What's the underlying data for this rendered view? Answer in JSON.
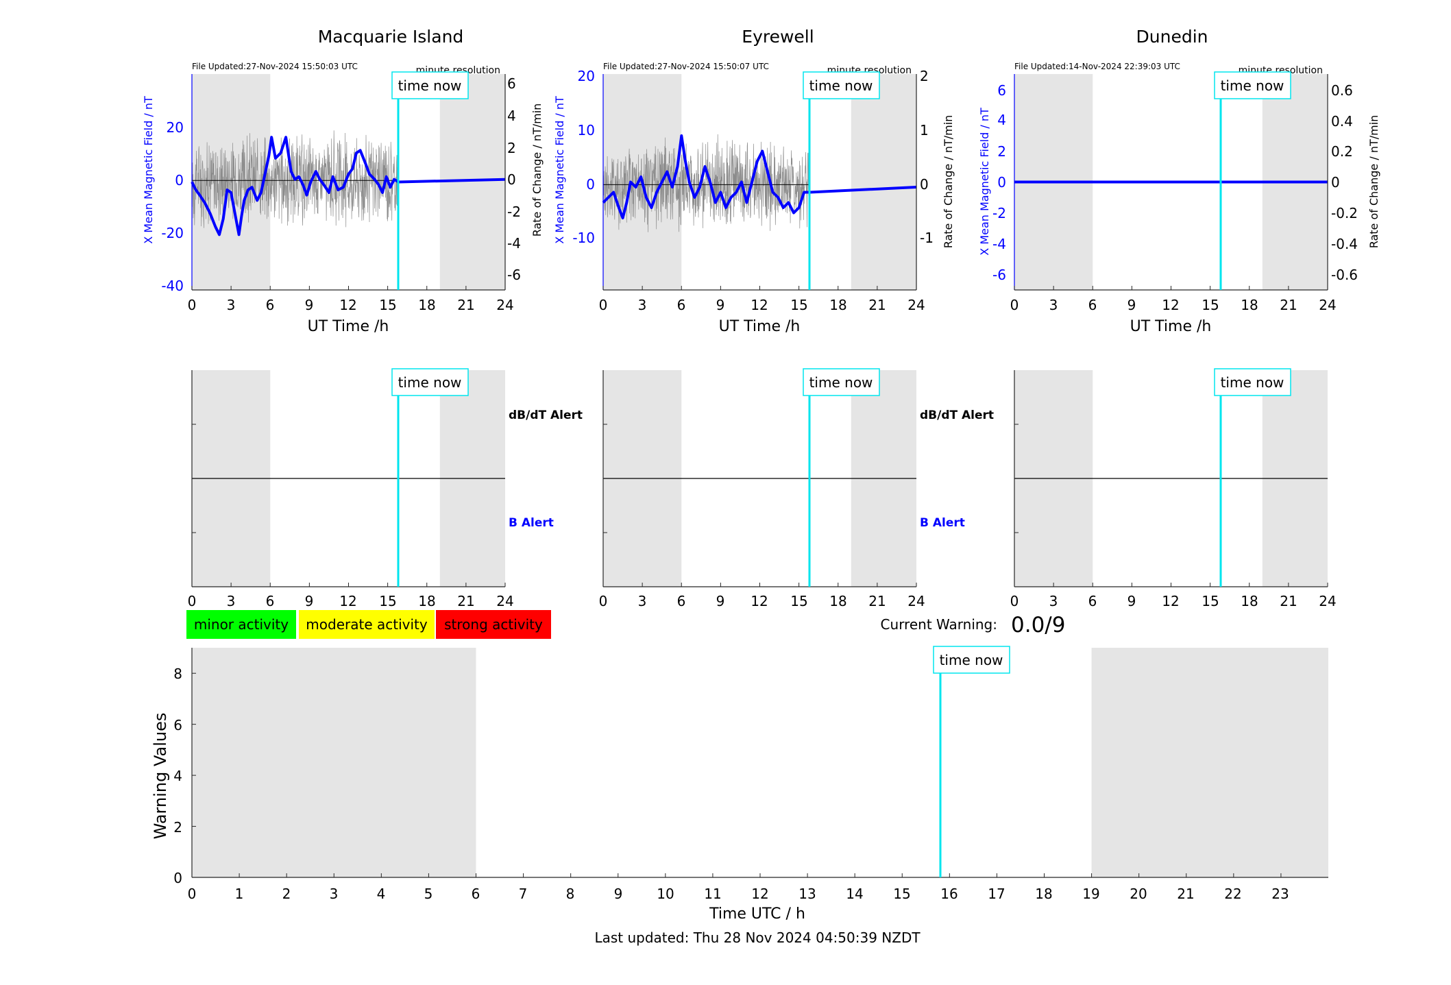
{
  "station_panels": [
    {
      "title": "Macquarie Island",
      "file_updated": "File Updated:27-Nov-2024 15:50:03 UTC",
      "resolution_label": "minute resolution",
      "left_axis_label": "X Mean Magnetic Field / nT",
      "right_axis_label": "Rate of Change / nT/min",
      "xlabel": "UT Time /h",
      "left_yticks": [
        "20",
        "0",
        "-20",
        "-40"
      ],
      "right_yticks": [
        "6",
        "4",
        "2",
        "0",
        "-2",
        "-4",
        "-6"
      ],
      "xticks": [
        "0",
        "3",
        "6",
        "9",
        "12",
        "15",
        "18",
        "21",
        "24"
      ],
      "time_now_label": "time now"
    },
    {
      "title": "Eyrewell",
      "file_updated": "File Updated:27-Nov-2024 15:50:07 UTC",
      "resolution_label": "minute resolution",
      "left_axis_label": "X Mean Magnetic Field / nT",
      "right_axis_label": "Rate of Change / nT/min",
      "xlabel": "UT Time /h",
      "left_yticks": [
        "20",
        "10",
        "0",
        "-10"
      ],
      "right_yticks": [
        "2",
        "1",
        "0",
        "-1"
      ],
      "xticks": [
        "0",
        "3",
        "6",
        "9",
        "12",
        "15",
        "18",
        "21",
        "24"
      ],
      "time_now_label": "time now"
    },
    {
      "title": "Dunedin",
      "file_updated": "File Updated:14-Nov-2024 22:39:03 UTC",
      "resolution_label": "minute resolution",
      "left_axis_label": "X Mean Magnetic Field / nT",
      "right_axis_label": "Rate of Change / nT/min",
      "xlabel": "UT Time /h",
      "left_yticks": [
        "6",
        "4",
        "2",
        "0",
        "-2",
        "-4",
        "-6"
      ],
      "right_yticks": [
        "0.6",
        "0.4",
        "0.2",
        "0",
        "-0.2",
        "-0.4",
        "-0.6"
      ],
      "xticks": [
        "0",
        "3",
        "6",
        "9",
        "12",
        "15",
        "18",
        "21",
        "24"
      ],
      "time_now_label": "time now"
    }
  ],
  "alert_panels": [
    {
      "dbdt_label": "dB/dT Alert",
      "b_label": "B Alert",
      "xticks": [
        "0",
        "3",
        "6",
        "9",
        "12",
        "15",
        "18",
        "21",
        "24"
      ],
      "time_now_label": "time now"
    },
    {
      "dbdt_label": "dB/dT Alert",
      "b_label": "B Alert",
      "xticks": [
        "0",
        "3",
        "6",
        "9",
        "12",
        "15",
        "18",
        "21",
        "24"
      ],
      "time_now_label": "time now"
    },
    {
      "dbdt_label": "",
      "b_label": "",
      "xticks": [
        "0",
        "3",
        "6",
        "9",
        "12",
        "15",
        "18",
        "21",
        "24"
      ],
      "time_now_label": "time now"
    }
  ],
  "legend": [
    {
      "label": "minor activity",
      "color": "#00ff00"
    },
    {
      "label": "moderate activity",
      "color": "#ffff00"
    },
    {
      "label": "strong activity",
      "color": "#ff0000"
    }
  ],
  "current_warning": {
    "label": "Current Warning:",
    "value": "0.0/9"
  },
  "warning_panel": {
    "ylabel": "Warning Values",
    "xlabel": "Time UTC / h",
    "yticks": [
      "0",
      "2",
      "4",
      "6",
      "8"
    ],
    "xticks": [
      "0",
      "1",
      "2",
      "3",
      "4",
      "5",
      "6",
      "7",
      "8",
      "9",
      "10",
      "11",
      "12",
      "13",
      "14",
      "15",
      "16",
      "17",
      "18",
      "19",
      "20",
      "21",
      "22",
      "23"
    ],
    "time_now_label": "time now"
  },
  "footer": {
    "last_updated": "Last updated: Thu 28 Nov 2024 04:50:39 NZDT"
  },
  "colors": {
    "blue": "#0000ff",
    "cyan": "#00e5ee",
    "night_shade": "#e5e5e5",
    "axis": "#262626"
  },
  "chart_data": [
    {
      "type": "line",
      "title": "Macquarie Island",
      "xlabel": "UT Time /h",
      "ylabel": "X Mean Magnetic Field / nT",
      "y2label": "Rate of Change / nT/min",
      "xlim": [
        0,
        24
      ],
      "ylim": [
        -42,
        40
      ],
      "y2lim": [
        -7,
        6.8
      ],
      "night_shading_hours": [
        [
          0,
          6
        ],
        [
          19,
          24
        ]
      ],
      "time_now_hour": 15.83,
      "series": [
        {
          "name": "X Mean Magnetic Field",
          "axis": "left",
          "x": [
            0,
            0.3,
            0.6,
            1.0,
            1.4,
            1.8,
            2.1,
            2.4,
            2.7,
            3.0,
            3.3,
            3.6,
            3.8,
            4.0,
            4.3,
            4.6,
            5.0,
            5.3,
            5.6,
            5.9,
            6.1,
            6.4,
            6.8,
            7.2,
            7.6,
            7.9,
            8.2,
            8.5,
            8.8,
            9.1,
            9.5,
            9.8,
            10.1,
            10.5,
            10.8,
            11.2,
            11.6,
            12.0,
            12.3,
            12.6,
            12.9,
            13.3,
            13.6,
            14.0,
            14.3,
            14.6,
            14.9,
            15.2,
            15.5,
            15.83,
            24
          ],
          "y": [
            -1,
            -4,
            -6,
            -9,
            -13,
            -18,
            -21,
            -15,
            -4,
            -5,
            -13,
            -21,
            -14,
            -8,
            -4,
            -3,
            -8,
            -5,
            2,
            9,
            16,
            8,
            10,
            16,
            3,
            0,
            1,
            -2,
            -6,
            -1,
            3,
            0,
            -2,
            -5,
            1,
            -4,
            -3,
            2,
            4,
            10,
            11,
            6,
            2,
            0,
            -2,
            -5,
            1,
            -3,
            0,
            -1,
            0
          ]
        },
        {
          "name": "Rate of Change",
          "axis": "right",
          "style": "thin grey noise",
          "x": [
            0,
            15.83
          ],
          "y": [
            0,
            0
          ]
        }
      ]
    },
    {
      "type": "line",
      "title": "Eyrewell",
      "xlabel": "UT Time /h",
      "ylabel": "X Mean Magnetic Field / nT",
      "y2label": "Rate of Change / nT/min",
      "xlim": [
        0,
        24
      ],
      "ylim": [
        -20,
        22
      ],
      "y2lim": [
        -2,
        2.1
      ],
      "night_shading_hours": [
        [
          0,
          6
        ],
        [
          19,
          24
        ]
      ],
      "time_now_hour": 15.83,
      "series": [
        {
          "name": "X Mean Magnetic Field",
          "axis": "left",
          "x": [
            0,
            0.4,
            0.8,
            1.2,
            1.5,
            1.8,
            2.1,
            2.5,
            2.9,
            3.3,
            3.7,
            4.1,
            4.5,
            4.9,
            5.3,
            5.7,
            6.0,
            6.3,
            6.6,
            7.0,
            7.4,
            7.8,
            8.2,
            8.6,
            9.0,
            9.4,
            9.8,
            10.2,
            10.6,
            11.0,
            11.4,
            11.8,
            12.2,
            12.6,
            13.0,
            13.4,
            13.8,
            14.2,
            14.6,
            15.0,
            15.4,
            15.83,
            24
          ],
          "y": [
            -3,
            -2,
            -1,
            -4,
            -6,
            -3,
            1,
            0,
            2,
            -2,
            -4,
            -1,
            1,
            3,
            0,
            4,
            10,
            5,
            1,
            -2,
            0,
            4,
            1,
            -3,
            -1,
            -4,
            -2,
            -1,
            1,
            -3,
            1,
            5,
            7,
            3,
            -1,
            -2,
            -4,
            -3,
            -5,
            -4,
            -1,
            -1,
            0
          ]
        },
        {
          "name": "Rate of Change",
          "axis": "right",
          "style": "thin grey noise",
          "x": [
            0,
            15.83
          ],
          "y": [
            0,
            0
          ]
        }
      ]
    },
    {
      "type": "line",
      "title": "Dunedin",
      "xlabel": "UT Time /h",
      "ylabel": "X Mean Magnetic Field / nT",
      "y2label": "Rate of Change / nT/min",
      "xlim": [
        0,
        24
      ],
      "ylim": [
        -7,
        7
      ],
      "y2lim": [
        -0.7,
        0.7
      ],
      "night_shading_hours": [
        [
          0,
          6
        ],
        [
          19,
          24
        ]
      ],
      "time_now_hour": 15.83,
      "series": [
        {
          "name": "X Mean Magnetic Field",
          "axis": "left",
          "x": [
            0,
            24
          ],
          "y": [
            0,
            0
          ]
        }
      ]
    },
    {
      "type": "line",
      "title": "",
      "xlabel": "Time UTC / h",
      "ylabel": "Warning Values",
      "xlim": [
        0,
        24
      ],
      "ylim": [
        0,
        9
      ],
      "night_shading_hours": [
        [
          0,
          6
        ],
        [
          19,
          24
        ]
      ],
      "time_now_hour": 15.83,
      "current_warning": 0.0
    }
  ]
}
